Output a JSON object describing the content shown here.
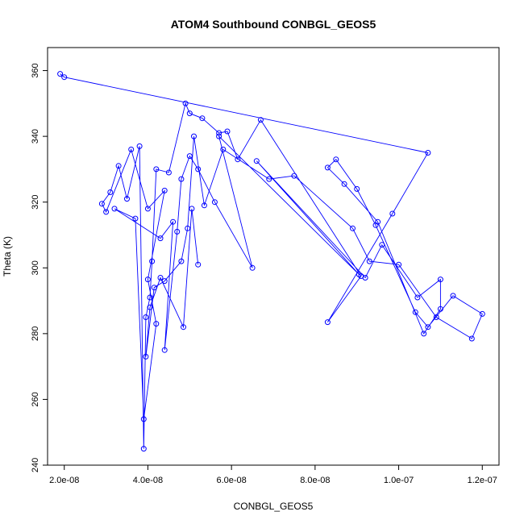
{
  "chart_data": {
    "type": "line",
    "title": "ATOM4 Southbound CONBGL_GEOS5",
    "xlabel": "CONBGL_GEOS5",
    "ylabel": "Theta (K)",
    "xlim": [
      1.6e-08,
      1.24e-07
    ],
    "ylim": [
      240,
      367
    ],
    "xticks": [
      2e-08,
      4e-08,
      6e-08,
      8e-08,
      1e-07,
      1.2e-07
    ],
    "xtick_labels": [
      "2.0e-08",
      "4.0e-08",
      "6.0e-08",
      "8.0e-08",
      "1.0e-07",
      "1.2e-07"
    ],
    "yticks": [
      240,
      260,
      280,
      300,
      320,
      340,
      360
    ],
    "ytick_labels": [
      "240",
      "260",
      "280",
      "300",
      "320",
      "340",
      "360"
    ],
    "grid": false,
    "legend": "none",
    "series": [
      {
        "color": "#0000ff",
        "marker": "open-circle",
        "x": [
          1.9e-08,
          2e-08,
          1.07e-07,
          9.85e-08,
          8.3e-08,
          9.1e-08,
          6.7e-08,
          6.15e-08,
          5.9e-08,
          5.7e-08,
          5.3e-08,
          5e-08,
          4.9e-08,
          4.5e-08,
          4.2e-08,
          4.1e-08,
          4.05e-08,
          3.95e-08,
          3.9e-08,
          3.8e-08,
          3.5e-08,
          3.3e-08,
          3.1e-08,
          2.9e-08,
          3e-08,
          3.6e-08,
          4e-08,
          4.4e-08,
          4e-08,
          4.2e-08,
          3.9e-08,
          3.7e-08,
          3.2e-08,
          4.3e-08,
          4.6e-08,
          4.4e-08,
          4.7e-08,
          4.8e-08,
          5e-08,
          5.2e-08,
          5.6e-08,
          6.5e-08,
          5.7e-08,
          9.05e-08,
          6.6e-08,
          9.2e-08,
          9.6e-08,
          1.045e-07,
          1.1e-07,
          1.1e-07,
          1.06e-07,
          9.5e-08,
          8.7e-08,
          8.3e-08,
          8.5e-08,
          9e-08,
          9.45e-08,
          1.04e-07,
          1.07e-07,
          1.13e-07,
          1.2e-07,
          1.175e-07,
          1.09e-07,
          1e-07,
          9.3e-08,
          8.9e-08,
          7.5e-08,
          6.9e-08,
          5.8e-08,
          5.35e-08,
          5.1e-08,
          4.95e-08,
          4.8e-08,
          4.4e-08,
          4.15e-08,
          3.95e-08,
          4.05e-08,
          4.3e-08,
          4.85e-08,
          5.05e-08,
          5.2e-08
        ],
        "y": [
          359,
          358,
          335,
          316.5,
          283.5,
          297.5,
          345,
          333,
          341.5,
          341,
          345.5,
          347,
          350,
          329,
          330,
          302,
          291,
          285,
          245,
          337,
          321,
          331,
          323,
          319.5,
          317,
          336,
          318,
          323.5,
          296.5,
          283,
          254,
          315,
          318,
          309,
          314,
          275,
          311,
          327,
          334,
          330,
          320,
          300,
          340,
          298,
          332.5,
          297,
          307,
          291,
          296.5,
          287.5,
          280,
          314,
          325.5,
          330.5,
          333,
          324,
          313,
          286.5,
          282,
          291.5,
          286,
          278.5,
          285,
          301,
          302,
          312,
          328,
          327,
          336,
          319,
          340,
          312,
          302,
          296,
          294,
          273,
          288,
          297,
          282,
          318,
          301
        ]
      }
    ]
  }
}
